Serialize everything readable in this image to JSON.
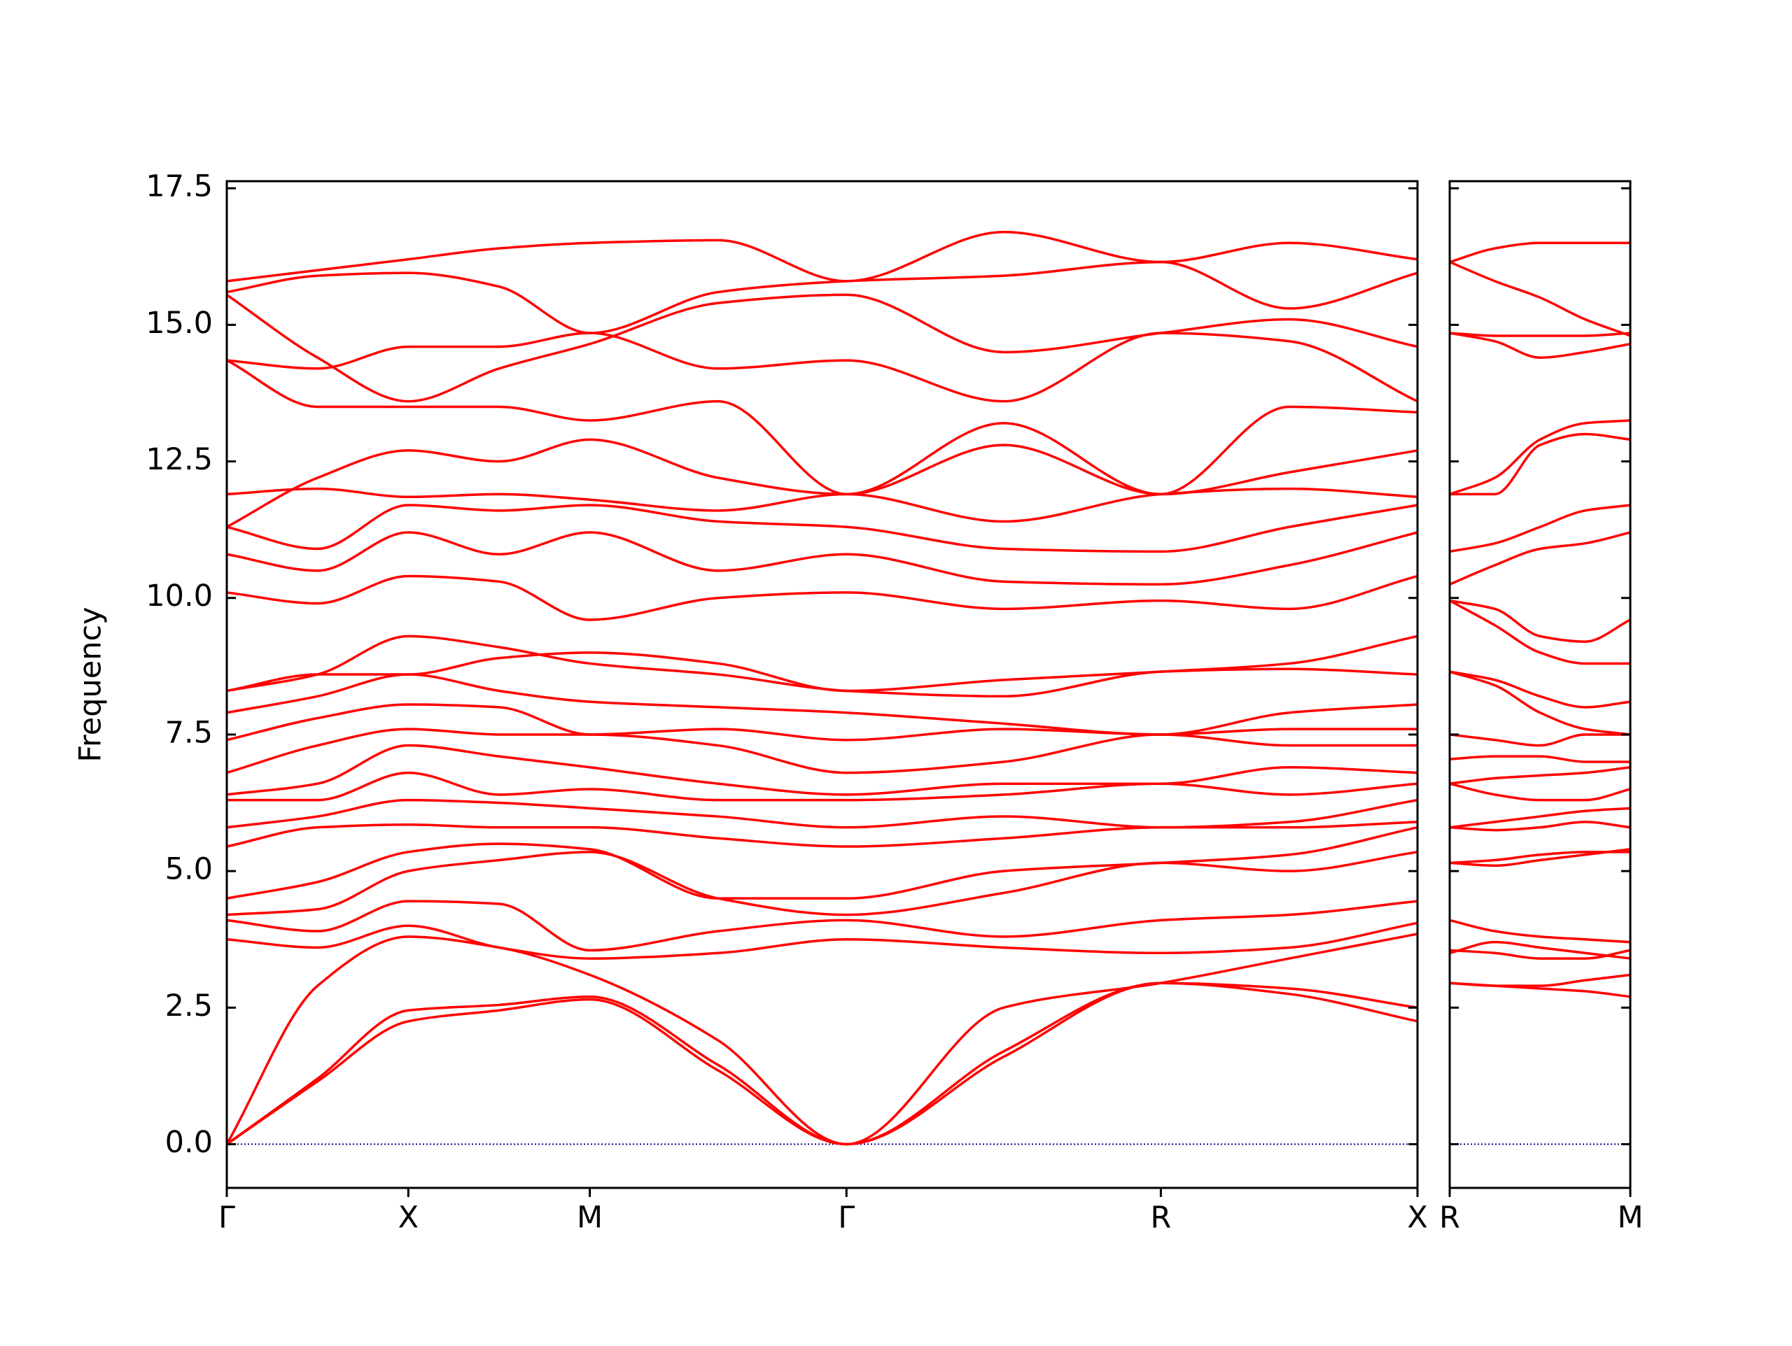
{
  "chart_data": [
    {
      "type": "line",
      "ylabel": "Frequency",
      "color": "#ff0000",
      "ylim": [
        -0.8,
        17.63
      ],
      "yticks": [
        {
          "value": 0,
          "label": "0.0"
        },
        2.5,
        {
          "value": 5,
          "label": "5.0"
        },
        7.5,
        {
          "value": 10,
          "label": "10.0"
        },
        12.5,
        {
          "value": 15,
          "label": "15.0"
        },
        17.5
      ],
      "show_ytick_labels": true,
      "xlim": [
        0,
        6.56
      ],
      "xticks": [
        {
          "value": 0,
          "label": "Γ"
        },
        {
          "value": 1,
          "label": "X"
        },
        {
          "value": 2,
          "label": "M"
        },
        {
          "value": 3.414,
          "label": "Γ"
        },
        {
          "value": 5.146,
          "label": "R"
        },
        {
          "value": 6.56,
          "label": "X"
        }
      ],
      "zero_line": {
        "value": 0,
        "color": "#00008b"
      },
      "x": [
        0,
        0.5,
        1,
        1.5,
        2,
        2.707,
        3.414,
        4.28,
        5.146,
        5.853,
        6.56
      ],
      "series": [
        {
          "values": [
            0,
            1.15,
            2.25,
            2.45,
            2.65,
            1.35,
            0,
            1.6,
            2.95,
            2.75,
            2.25
          ]
        },
        {
          "values": [
            0,
            1.2,
            2.45,
            2.55,
            2.7,
            1.45,
            0,
            1.7,
            2.95,
            2.85,
            2.5
          ]
        },
        {
          "values": [
            0,
            2.9,
            3.8,
            3.6,
            3.1,
            1.9,
            0,
            2.5,
            2.95,
            3.4,
            3.85
          ]
        },
        {
          "values": [
            3.75,
            3.6,
            4.0,
            3.6,
            3.4,
            3.5,
            3.75,
            3.6,
            3.5,
            3.6,
            4.05
          ]
        },
        {
          "values": [
            4.1,
            3.9,
            4.45,
            4.4,
            3.55,
            3.9,
            4.1,
            3.8,
            4.1,
            4.2,
            4.45
          ]
        },
        {
          "values": [
            4.2,
            4.3,
            5.0,
            5.2,
            5.35,
            4.5,
            4.2,
            4.6,
            5.15,
            5.0,
            5.35
          ]
        },
        {
          "values": [
            4.5,
            4.8,
            5.35,
            5.5,
            5.4,
            4.5,
            4.5,
            5.0,
            5.15,
            5.3,
            5.8
          ]
        },
        {
          "values": [
            5.45,
            5.8,
            5.85,
            5.8,
            5.8,
            5.6,
            5.45,
            5.6,
            5.8,
            5.8,
            5.9
          ]
        },
        {
          "values": [
            5.8,
            6.0,
            6.3,
            6.25,
            6.15,
            6.0,
            5.8,
            6.0,
            5.8,
            5.9,
            6.3
          ]
        },
        {
          "values": [
            6.3,
            6.3,
            6.8,
            6.4,
            6.5,
            6.3,
            6.3,
            6.4,
            6.6,
            6.4,
            6.6
          ]
        },
        {
          "values": [
            6.4,
            6.6,
            7.3,
            7.1,
            6.9,
            6.6,
            6.4,
            6.6,
            6.6,
            6.9,
            6.8
          ]
        },
        {
          "values": [
            6.8,
            7.3,
            7.6,
            7.5,
            7.5,
            7.3,
            6.8,
            7.0,
            7.5,
            7.3,
            7.3
          ]
        },
        {
          "values": [
            7.4,
            7.8,
            8.05,
            8.0,
            7.5,
            7.6,
            7.4,
            7.6,
            7.5,
            7.6,
            7.6
          ]
        },
        {
          "values": [
            7.9,
            8.2,
            8.6,
            8.3,
            8.1,
            8.0,
            7.9,
            7.7,
            7.5,
            7.9,
            8.05
          ]
        },
        {
          "values": [
            8.3,
            8.6,
            9.3,
            9.1,
            8.8,
            8.6,
            8.3,
            8.2,
            8.65,
            8.7,
            8.6
          ]
        },
        {
          "values": [
            8.3,
            8.6,
            8.6,
            8.9,
            9.0,
            8.8,
            8.3,
            8.5,
            8.65,
            8.8,
            9.3
          ]
        },
        {
          "values": [
            10.1,
            9.9,
            10.4,
            10.3,
            9.6,
            10.0,
            10.1,
            9.8,
            9.95,
            9.8,
            10.4
          ]
        },
        {
          "values": [
            10.8,
            10.5,
            11.2,
            10.8,
            11.2,
            10.5,
            10.8,
            10.3,
            10.25,
            10.6,
            11.2
          ]
        },
        {
          "values": [
            11.3,
            10.9,
            11.7,
            11.6,
            11.7,
            11.4,
            11.3,
            10.9,
            10.85,
            11.3,
            11.7
          ]
        },
        {
          "values": [
            11.9,
            12.0,
            11.85,
            11.9,
            11.8,
            11.6,
            11.9,
            11.4,
            11.9,
            12.0,
            11.85
          ]
        },
        {
          "values": [
            11.3,
            12.2,
            12.7,
            12.5,
            12.9,
            12.2,
            11.9,
            12.8,
            11.9,
            12.3,
            12.7
          ]
        },
        {
          "values": [
            14.35,
            13.5,
            13.5,
            13.5,
            13.25,
            13.6,
            11.9,
            13.2,
            11.9,
            13.5,
            13.4
          ]
        },
        {
          "values": [
            14.35,
            14.2,
            14.6,
            14.6,
            14.85,
            14.2,
            14.35,
            13.6,
            14.85,
            14.7,
            13.6
          ]
        },
        {
          "values": [
            15.55,
            14.4,
            13.6,
            14.2,
            14.65,
            15.4,
            15.55,
            14.5,
            14.85,
            15.1,
            14.6
          ]
        },
        {
          "values": [
            15.6,
            15.9,
            15.95,
            15.7,
            14.85,
            15.6,
            15.8,
            15.9,
            16.15,
            15.3,
            15.95
          ]
        },
        {
          "values": [
            15.8,
            16.0,
            16.2,
            16.4,
            16.5,
            16.55,
            15.8,
            16.7,
            16.15,
            16.5,
            16.2
          ]
        }
      ]
    },
    {
      "type": "line",
      "color": "#ff0000",
      "ylim": [
        -0.8,
        17.63
      ],
      "yticks": [
        0,
        2.5,
        5,
        7.5,
        10,
        12.5,
        15,
        17.5
      ],
      "show_ytick_labels": false,
      "xlim": [
        0,
        1
      ],
      "xticks": [
        {
          "value": 0,
          "label": "R"
        },
        {
          "value": 1,
          "label": "M"
        }
      ],
      "zero_line": {
        "value": 0,
        "color": "#00008b"
      },
      "x": [
        0,
        0.25,
        0.5,
        0.75,
        1
      ],
      "series": [
        {
          "values": [
            2.95,
            2.9,
            2.9,
            3.0,
            3.1
          ]
        },
        {
          "values": [
            2.95,
            2.9,
            2.85,
            2.8,
            2.7
          ]
        },
        {
          "values": [
            3.5,
            3.7,
            3.6,
            3.5,
            3.4
          ]
        },
        {
          "values": [
            3.55,
            3.5,
            3.4,
            3.4,
            3.55
          ]
        },
        {
          "values": [
            4.1,
            3.9,
            3.8,
            3.75,
            3.7
          ]
        },
        {
          "values": [
            5.15,
            5.2,
            5.3,
            5.35,
            5.35
          ]
        },
        {
          "values": [
            5.15,
            5.1,
            5.2,
            5.3,
            5.4
          ]
        },
        {
          "values": [
            5.8,
            5.75,
            5.8,
            5.9,
            5.8
          ]
        },
        {
          "values": [
            5.8,
            5.9,
            6.0,
            6.1,
            6.15
          ]
        },
        {
          "values": [
            6.6,
            6.4,
            6.3,
            6.3,
            6.5
          ]
        },
        {
          "values": [
            6.6,
            6.7,
            6.75,
            6.8,
            6.9
          ]
        },
        {
          "values": [
            7.05,
            7.1,
            7.1,
            7.0,
            7.0
          ]
        },
        {
          "values": [
            7.5,
            7.4,
            7.3,
            7.5,
            7.5
          ]
        },
        {
          "values": [
            8.65,
            8.4,
            7.9,
            7.6,
            7.5
          ]
        },
        {
          "values": [
            8.65,
            8.5,
            8.2,
            8.0,
            8.1
          ]
        },
        {
          "values": [
            9.95,
            9.5,
            9.0,
            8.8,
            8.8
          ]
        },
        {
          "values": [
            9.95,
            9.8,
            9.3,
            9.2,
            9.6
          ]
        },
        {
          "values": [
            10.25,
            10.6,
            10.9,
            11.0,
            11.2
          ]
        },
        {
          "values": [
            10.85,
            11.0,
            11.3,
            11.6,
            11.7
          ]
        },
        {
          "values": [
            11.9,
            11.9,
            12.8,
            13.0,
            12.9
          ]
        },
        {
          "values": [
            11.9,
            12.2,
            12.9,
            13.2,
            13.25
          ]
        },
        {
          "values": [
            14.85,
            14.7,
            14.4,
            14.5,
            14.65
          ]
        },
        {
          "values": [
            14.85,
            14.8,
            14.8,
            14.8,
            14.85
          ]
        },
        {
          "values": [
            16.15,
            15.8,
            15.5,
            15.1,
            14.8
          ]
        },
        {
          "values": [
            16.15,
            16.4,
            16.5,
            16.5,
            16.5
          ]
        }
      ]
    }
  ]
}
